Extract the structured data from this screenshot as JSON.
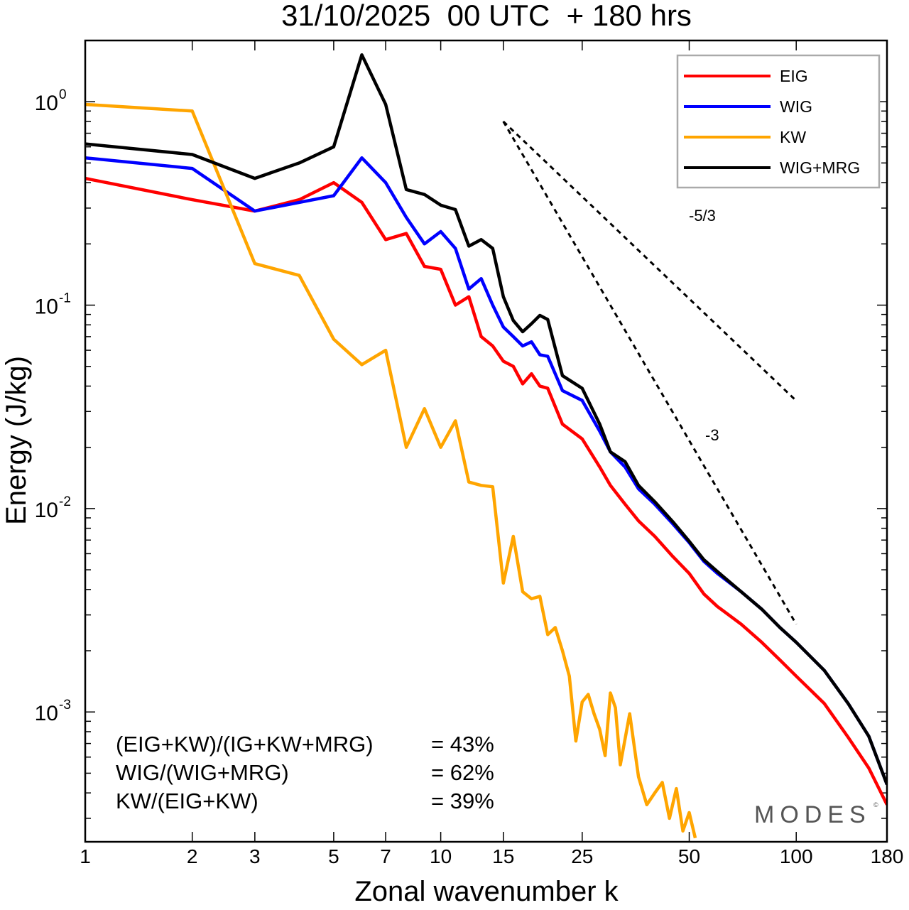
{
  "chart_data": {
    "type": "line",
    "title": "31/10/2025  00 UTC  + 180 hrs",
    "xlabel": "Zonal wavenumber k",
    "ylabel": "Energy (J/kg)",
    "xscale": "log",
    "yscale": "log",
    "xlim": [
      1,
      180
    ],
    "ylim": [
      0.00023,
      2.0
    ],
    "x_ticks": [
      1,
      2,
      3,
      5,
      7,
      10,
      15,
      25,
      50,
      100,
      180
    ],
    "x_tick_labels": [
      "1",
      "2",
      "3",
      "5",
      "7",
      "10",
      "15",
      "25",
      "50",
      "100",
      "180"
    ],
    "y_ticks": [
      {
        "value": 1,
        "base": "10",
        "exp": "0"
      },
      {
        "value": 0.1,
        "base": "10",
        "exp": "-1"
      },
      {
        "value": 0.01,
        "base": "10",
        "exp": "-2"
      },
      {
        "value": 0.001,
        "base": "10",
        "exp": "-3"
      }
    ],
    "legend_position": "top-right",
    "series": [
      {
        "name": "EIG",
        "color": "#ff0000",
        "x": [
          1,
          2,
          3,
          4,
          5,
          6,
          7,
          8,
          9,
          10,
          11,
          12,
          13,
          14,
          15,
          16,
          17,
          18,
          19,
          20,
          22,
          25,
          28,
          30,
          33,
          36,
          40,
          45,
          50,
          55,
          60,
          70,
          80,
          90,
          100,
          120,
          140,
          160,
          180
        ],
        "values": [
          0.42,
          0.33,
          0.29,
          0.33,
          0.4,
          0.32,
          0.21,
          0.225,
          0.155,
          0.15,
          0.1,
          0.11,
          0.07,
          0.063,
          0.053,
          0.05,
          0.041,
          0.046,
          0.04,
          0.039,
          0.026,
          0.022,
          0.016,
          0.013,
          0.0105,
          0.0087,
          0.0073,
          0.0058,
          0.0048,
          0.0038,
          0.0033,
          0.0027,
          0.0022,
          0.0018,
          0.0015,
          0.0011,
          0.00075,
          0.00053,
          0.00035
        ]
      },
      {
        "name": "WIG",
        "color": "#0000ff",
        "x": [
          1,
          2,
          3,
          4,
          5,
          6,
          7,
          8,
          9,
          10,
          11,
          12,
          13,
          14,
          15,
          16,
          17,
          18,
          19,
          20,
          22,
          25,
          28,
          30,
          33,
          36,
          40,
          45,
          50,
          55,
          60,
          70,
          80,
          90,
          100,
          120,
          140,
          160,
          180
        ],
        "values": [
          0.53,
          0.47,
          0.29,
          0.32,
          0.345,
          0.53,
          0.4,
          0.27,
          0.2,
          0.23,
          0.19,
          0.12,
          0.135,
          0.1,
          0.078,
          0.07,
          0.063,
          0.066,
          0.057,
          0.056,
          0.038,
          0.034,
          0.024,
          0.019,
          0.016,
          0.0125,
          0.0105,
          0.0084,
          0.0068,
          0.0055,
          0.0048,
          0.0039,
          0.0032,
          0.0026,
          0.0022,
          0.0016,
          0.0011,
          0.00076,
          0.00044
        ]
      },
      {
        "name": "KW",
        "color": "#ffa500",
        "x": [
          1,
          2,
          3,
          4,
          5,
          6,
          7,
          8,
          9,
          10,
          11,
          12,
          13,
          14,
          15,
          16,
          17,
          18,
          19,
          20,
          21,
          22,
          23,
          24,
          25,
          26,
          27,
          28,
          29,
          30,
          31,
          32,
          34,
          36,
          38,
          40,
          42,
          44,
          46,
          48,
          50,
          52
        ],
        "values": [
          0.97,
          0.9,
          0.16,
          0.14,
          0.068,
          0.051,
          0.06,
          0.02,
          0.031,
          0.02,
          0.027,
          0.0135,
          0.013,
          0.0128,
          0.0043,
          0.0073,
          0.0039,
          0.0036,
          0.0037,
          0.0024,
          0.0026,
          0.002,
          0.0015,
          0.00072,
          0.00112,
          0.00122,
          0.00098,
          0.00082,
          0.00061,
          0.00124,
          0.00105,
          0.00055,
          0.00098,
          0.00048,
          0.00035,
          0.0004,
          0.00045,
          0.0003,
          0.00042,
          0.00026,
          0.00032,
          0.00024
        ]
      },
      {
        "name": "WIG+MRG",
        "color": "#000000",
        "x": [
          1,
          2,
          3,
          4,
          5,
          6,
          7,
          8,
          9,
          10,
          11,
          12,
          13,
          14,
          15,
          16,
          17,
          18,
          19,
          20,
          22,
          25,
          28,
          30,
          33,
          36,
          40,
          45,
          50,
          55,
          60,
          70,
          80,
          90,
          100,
          120,
          140,
          160,
          180
        ],
        "values": [
          0.62,
          0.55,
          0.42,
          0.5,
          0.6,
          1.7,
          0.97,
          0.37,
          0.35,
          0.31,
          0.295,
          0.195,
          0.21,
          0.19,
          0.11,
          0.084,
          0.074,
          0.081,
          0.089,
          0.085,
          0.045,
          0.039,
          0.026,
          0.019,
          0.017,
          0.013,
          0.0108,
          0.0086,
          0.0069,
          0.0056,
          0.0049,
          0.0039,
          0.0032,
          0.0026,
          0.0022,
          0.0016,
          0.0011,
          0.00076,
          0.00044
        ]
      }
    ],
    "reference_lines": [
      {
        "label": "-5/3",
        "slope": -1.6667,
        "x": [
          15,
          100
        ],
        "y_start": 0.8
      },
      {
        "label": "-3",
        "slope": -3,
        "x": [
          15,
          100
        ],
        "y_start": 0.8
      }
    ],
    "annotations": [
      {
        "label": "(EIG+KW)/(IG+KW+MRG)",
        "value": "= 43%"
      },
      {
        "label": "WIG/(WIG+MRG)",
        "value": "= 62%"
      },
      {
        "label": "KW/(EIG+KW)",
        "value": "= 39%"
      }
    ],
    "watermark": "MODES"
  }
}
